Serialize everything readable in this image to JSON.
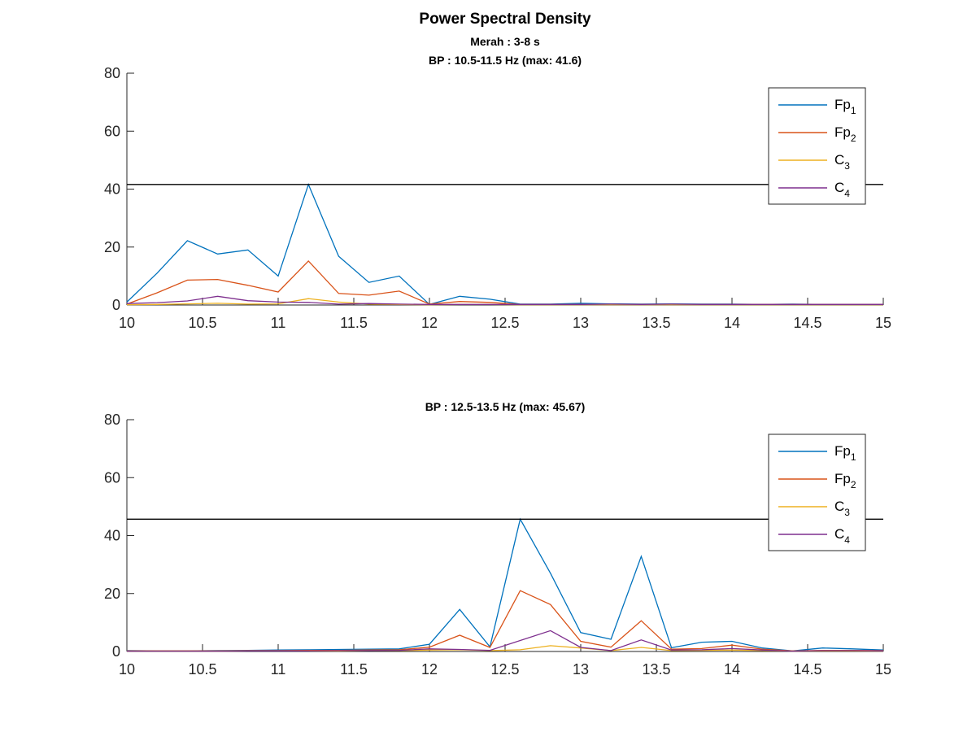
{
  "figure": {
    "title": "Power Spectral Density",
    "background": "#ffffff"
  },
  "chart_data": [
    {
      "type": "line",
      "title": "BP : 10.5-11.5 Hz (max: 41.6)",
      "subtitle": "Merah : 3-8 s",
      "xlim": [
        10,
        15
      ],
      "ylim": [
        0,
        80
      ],
      "xticks": [
        10,
        10.5,
        11,
        11.5,
        12,
        12.5,
        13,
        13.5,
        14,
        14.5,
        15
      ],
      "yticks": [
        0,
        20,
        40,
        60,
        80
      ],
      "xtick_labels": [
        "10",
        "10.5",
        "11",
        "11.5",
        "12",
        "12.5",
        "13",
        "13.5",
        "14",
        "14.5",
        "15"
      ],
      "ytick_labels": [
        "0",
        "20",
        "40",
        "60",
        "80"
      ],
      "hline": 41.6,
      "legend_position": "top-right",
      "x": [
        10,
        10.2,
        10.4,
        10.6,
        10.8,
        11,
        11.2,
        11.4,
        11.6,
        11.8,
        12,
        12.2,
        12.4,
        12.6,
        12.8,
        13,
        13.2,
        13.4,
        13.6,
        13.8,
        14,
        14.2,
        14.4,
        14.6,
        14.8,
        15
      ],
      "series": [
        {
          "name": "Fp",
          "sub": "1",
          "color": "#0072BD",
          "values": [
            1.0,
            11.0,
            22.2,
            17.6,
            19.0,
            10.0,
            41.6,
            16.8,
            7.8,
            10.0,
            0.2,
            3.0,
            2.0,
            0.3,
            0.3,
            0.6,
            0.4,
            0.3,
            0.4,
            0.3,
            0.3,
            0.2,
            0.3,
            0.2,
            0.2,
            0.2
          ]
        },
        {
          "name": "Fp",
          "sub": "2",
          "color": "#D95319",
          "values": [
            0.3,
            4.2,
            8.6,
            8.8,
            6.8,
            4.5,
            15.2,
            4.0,
            3.4,
            4.8,
            0.3,
            1.2,
            0.9,
            0.2,
            0.2,
            0.2,
            0.2,
            0.2,
            0.2,
            0.2,
            0.2,
            0.2,
            0.2,
            0.2,
            0.2,
            0.2
          ]
        },
        {
          "name": "C",
          "sub": "3",
          "color": "#EDB120",
          "values": [
            0.1,
            0.2,
            0.4,
            0.6,
            0.3,
            0.4,
            2.2,
            1.0,
            0.3,
            0.2,
            0.1,
            0.2,
            0.2,
            0.1,
            0.1,
            0.1,
            0.1,
            0.1,
            0.1,
            0.1,
            0.1,
            0.1,
            0.1,
            0.1,
            0.1,
            0.1
          ]
        },
        {
          "name": "C",
          "sub": "4",
          "color": "#7E2F8E",
          "values": [
            0.5,
            0.8,
            1.4,
            3.0,
            1.5,
            1.0,
            0.9,
            0.3,
            0.5,
            0.3,
            0.2,
            0.2,
            0.2,
            0.2,
            0.2,
            0.2,
            0.3,
            0.2,
            0.3,
            0.2,
            0.2,
            0.2,
            0.2,
            0.2,
            0.2,
            0.2
          ]
        }
      ]
    },
    {
      "type": "line",
      "title": "BP : 12.5-13.5 Hz (max: 45.67)",
      "xlim": [
        10,
        15
      ],
      "ylim": [
        0,
        80
      ],
      "xticks": [
        10,
        10.5,
        11,
        11.5,
        12,
        12.5,
        13,
        13.5,
        14,
        14.5,
        15
      ],
      "yticks": [
        0,
        20,
        40,
        60,
        80
      ],
      "xtick_labels": [
        "10",
        "10.5",
        "11",
        "11.5",
        "12",
        "12.5",
        "13",
        "13.5",
        "14",
        "14.5",
        "15"
      ],
      "ytick_labels": [
        "0",
        "20",
        "40",
        "60",
        "80"
      ],
      "hline": 45.67,
      "legend_position": "top-right",
      "x": [
        10,
        10.2,
        10.4,
        10.6,
        10.8,
        11,
        11.2,
        11.4,
        11.6,
        11.8,
        12,
        12.2,
        12.4,
        12.6,
        12.8,
        13,
        13.2,
        13.4,
        13.6,
        13.8,
        14,
        14.2,
        14.4,
        14.6,
        14.8,
        15
      ],
      "series": [
        {
          "name": "Fp",
          "sub": "1",
          "color": "#0072BD",
          "values": [
            0.3,
            0.2,
            0.2,
            0.3,
            0.4,
            0.5,
            0.6,
            0.7,
            0.8,
            0.9,
            2.5,
            14.5,
            1.6,
            45.67,
            27.0,
            6.5,
            4.2,
            32.8,
            1.3,
            3.2,
            3.5,
            1.2,
            0.2,
            1.2,
            0.9,
            0.5
          ]
        },
        {
          "name": "Fp",
          "sub": "2",
          "color": "#D95319",
          "values": [
            0.2,
            0.2,
            0.2,
            0.2,
            0.3,
            0.3,
            0.4,
            0.4,
            0.5,
            0.6,
            1.5,
            5.6,
            1.4,
            21.0,
            16.2,
            3.5,
            1.5,
            10.6,
            0.8,
            1.0,
            2.2,
            0.8,
            0.2,
            0.4,
            0.4,
            0.3
          ]
        },
        {
          "name": "C",
          "sub": "3",
          "color": "#EDB120",
          "values": [
            0.1,
            0.1,
            0.1,
            0.1,
            0.2,
            0.2,
            0.2,
            0.2,
            0.3,
            0.3,
            0.5,
            0.6,
            0.3,
            0.6,
            2.0,
            1.2,
            0.3,
            1.4,
            0.3,
            0.4,
            0.5,
            0.3,
            0.1,
            0.2,
            0.2,
            0.1
          ]
        },
        {
          "name": "C",
          "sub": "4",
          "color": "#7E2F8E",
          "values": [
            0.1,
            0.1,
            0.1,
            0.1,
            0.2,
            0.2,
            0.2,
            0.3,
            0.3,
            0.4,
            0.9,
            0.7,
            0.4,
            3.8,
            7.2,
            1.4,
            0.3,
            4.0,
            0.5,
            0.6,
            1.0,
            0.5,
            0.1,
            0.3,
            0.3,
            0.2
          ]
        }
      ]
    }
  ]
}
